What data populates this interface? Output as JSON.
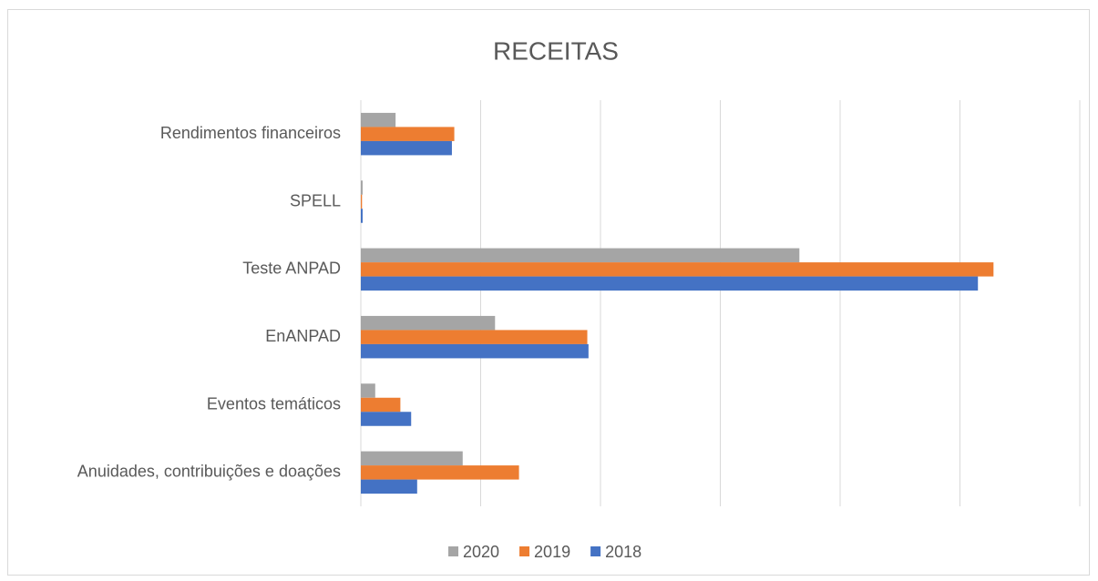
{
  "chart_data": {
    "type": "barh",
    "title": "RECEITAS",
    "categories": [
      "Rendimentos financeiros",
      "SPELL",
      "Teste ANPAD",
      "EnANPAD",
      "Eventos temáticos",
      "Anuidades, contribuições e doações"
    ],
    "series": [
      {
        "name": "2020",
        "color": "#a5a5a5",
        "values": [
          0.29,
          0.015,
          3.66,
          1.12,
          0.12,
          0.85
        ]
      },
      {
        "name": "2019",
        "color": "#ed7d31",
        "values": [
          0.78,
          0.01,
          5.28,
          1.89,
          0.33,
          1.32
        ]
      },
      {
        "name": "2018",
        "color": "#4472c4",
        "values": [
          0.76,
          0.015,
          5.15,
          1.9,
          0.42,
          0.47
        ]
      }
    ],
    "xlim": [
      0,
      6
    ],
    "xticks": [
      0,
      1,
      2,
      3,
      4,
      5,
      6
    ],
    "grid": true,
    "legend": "bottom"
  }
}
